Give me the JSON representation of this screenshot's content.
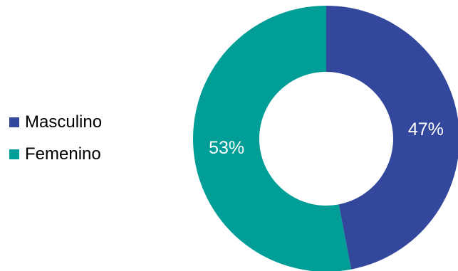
{
  "chart_data": {
    "type": "pie",
    "donut": true,
    "categories": [
      "Masculino",
      "Femenino"
    ],
    "values": [
      47,
      53
    ],
    "value_labels": [
      "47%",
      "53%"
    ],
    "colors": [
      "#33479C",
      "#009E96"
    ],
    "legend_position": "left",
    "title": ""
  }
}
